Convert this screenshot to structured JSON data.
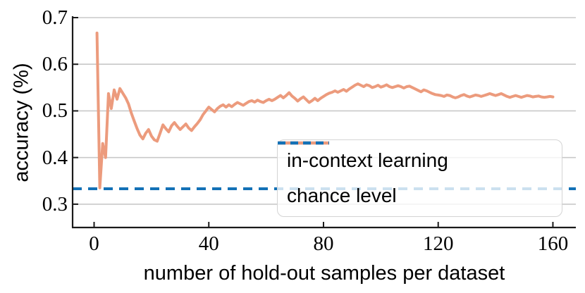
{
  "figure": {
    "background": "#ffffff"
  },
  "legend": {
    "items": [
      {
        "label": "in-context learning",
        "style": "solid",
        "color": "#EC9B7D"
      },
      {
        "label": "chance level",
        "style": "dashed",
        "color": "#1371B6"
      }
    ]
  },
  "chart_data": {
    "type": "line",
    "title": "",
    "xlabel": "number of hold-out samples per dataset",
    "ylabel": "accuracy (%)",
    "xlim": [
      -7.5,
      168
    ],
    "ylim": [
      0.25,
      0.7
    ],
    "xticks": [
      0,
      40,
      80,
      120,
      160
    ],
    "xtick_labels": [
      "0",
      "40",
      "80",
      "120",
      "160"
    ],
    "yticks": [
      0.3,
      0.4,
      0.5,
      0.6,
      0.7
    ],
    "ytick_labels": [
      "0.3",
      "0.4",
      "0.5",
      "0.6",
      "0.7"
    ],
    "grid": "horizontal",
    "grid_color": "#c8c8c8",
    "axis_color": "#1a1a1a",
    "legend_position": "lower right",
    "series": [
      {
        "name": "in-context learning",
        "color": "#EC9B7D",
        "line_style": "solid",
        "x_start": 1,
        "x_step": 1,
        "values": [
          0.667,
          0.335,
          0.43,
          0.4,
          0.537,
          0.505,
          0.545,
          0.525,
          0.548,
          0.538,
          0.528,
          0.515,
          0.495,
          0.478,
          0.462,
          0.448,
          0.44,
          0.452,
          0.46,
          0.446,
          0.438,
          0.435,
          0.452,
          0.47,
          0.462,
          0.455,
          0.468,
          0.475,
          0.467,
          0.46,
          0.466,
          0.472,
          0.463,
          0.458,
          0.466,
          0.473,
          0.481,
          0.492,
          0.5,
          0.508,
          0.503,
          0.498,
          0.505,
          0.51,
          0.513,
          0.508,
          0.513,
          0.509,
          0.514,
          0.518,
          0.515,
          0.512,
          0.516,
          0.52,
          0.522,
          0.519,
          0.523,
          0.52,
          0.518,
          0.522,
          0.525,
          0.522,
          0.525,
          0.529,
          0.533,
          0.528,
          0.533,
          0.539,
          0.532,
          0.527,
          0.521,
          0.526,
          0.53,
          0.524,
          0.518,
          0.522,
          0.527,
          0.522,
          0.527,
          0.531,
          0.535,
          0.538,
          0.54,
          0.543,
          0.54,
          0.543,
          0.546,
          0.542,
          0.547,
          0.551,
          0.555,
          0.558,
          0.555,
          0.552,
          0.556,
          0.554,
          0.55,
          0.552,
          0.555,
          0.551,
          0.553,
          0.556,
          0.552,
          0.55,
          0.552,
          0.554,
          0.552,
          0.549,
          0.552,
          0.553,
          0.55,
          0.547,
          0.544,
          0.541,
          0.545,
          0.543,
          0.54,
          0.537,
          0.535,
          0.534,
          0.533,
          0.531,
          0.534,
          0.533,
          0.53,
          0.528,
          0.53,
          0.533,
          0.535,
          0.532,
          0.53,
          0.532,
          0.534,
          0.533,
          0.531,
          0.533,
          0.535,
          0.537,
          0.535,
          0.533,
          0.535,
          0.537,
          0.534,
          0.531,
          0.529,
          0.531,
          0.533,
          0.531,
          0.529,
          0.531,
          0.533,
          0.532,
          0.53,
          0.531,
          0.532,
          0.53,
          0.529,
          0.53,
          0.531,
          0.53
        ]
      },
      {
        "name": "chance level",
        "color": "#1371B6",
        "line_style": "dashed",
        "constant": 0.333
      }
    ]
  }
}
